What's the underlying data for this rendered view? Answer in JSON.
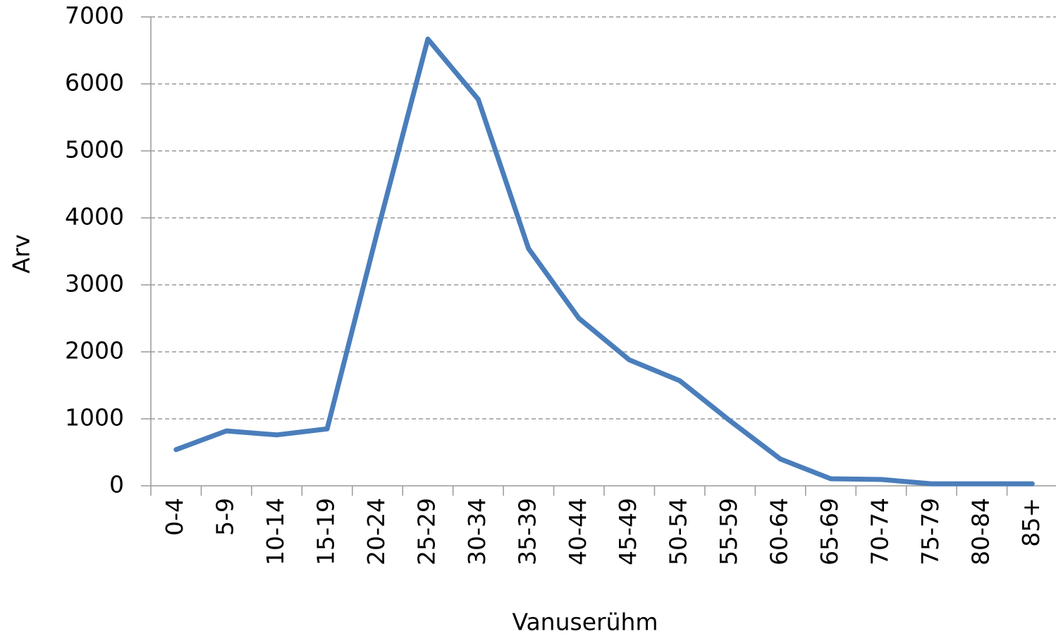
{
  "chart_data": {
    "type": "line",
    "x_label": "Vanuserühm",
    "y_label": "Arv",
    "categories": [
      "0-4",
      "5-9",
      "10-14",
      "15-19",
      "20-24",
      "25-29",
      "30-34",
      "35-39",
      "40-44",
      "45-49",
      "50-54",
      "55-59",
      "60-64",
      "65-69",
      "70-74",
      "75-79",
      "80-84",
      "85+"
    ],
    "series": [
      {
        "name": "Arv",
        "color": "#4a7ebb",
        "values": [
          540,
          820,
          760,
          850,
          3800,
          6670,
          5770,
          3540,
          2500,
          1880,
          1570,
          970,
          400,
          105,
          95,
          30,
          30,
          30
        ]
      }
    ],
    "ylim": [
      0,
      7000
    ],
    "yticks": [
      0,
      1000,
      2000,
      3000,
      4000,
      5000,
      6000,
      7000
    ],
    "grid": true
  }
}
